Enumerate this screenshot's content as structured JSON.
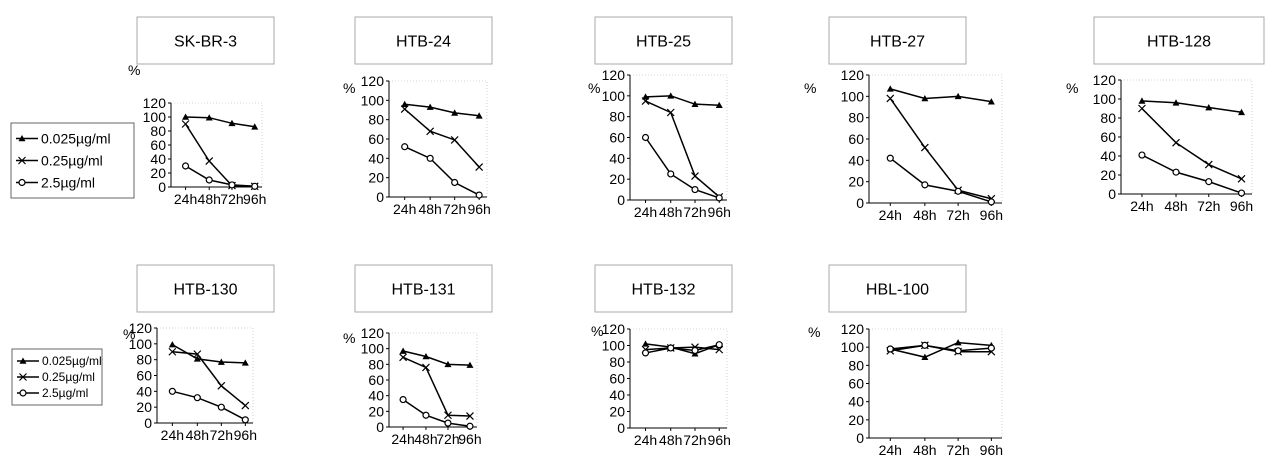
{
  "chart_data": [
    {
      "type": "line",
      "title": "SK-BR-3",
      "ylabel": "%",
      "categories": [
        "24h",
        "48h",
        "72h",
        "96h"
      ],
      "ylim": [
        0,
        120
      ],
      "yticks": [
        0,
        20,
        40,
        60,
        80,
        100,
        120
      ],
      "series": [
        {
          "name": "0.025µg/ml",
          "values": [
            100,
            99,
            91,
            86
          ]
        },
        {
          "name": "0.25µg/ml",
          "values": [
            90,
            37,
            2,
            1
          ]
        },
        {
          "name": "2.5µg/ml",
          "values": [
            30,
            10,
            3,
            1
          ]
        }
      ]
    },
    {
      "type": "line",
      "title": "HTB-24",
      "ylabel": "%",
      "categories": [
        "24h",
        "48h",
        "72h",
        "96h"
      ],
      "ylim": [
        0,
        120
      ],
      "yticks": [
        0,
        20,
        40,
        60,
        80,
        100,
        120
      ],
      "series": [
        {
          "name": "0.025µg/ml",
          "values": [
            96,
            93,
            87,
            84
          ]
        },
        {
          "name": "0.25µg/ml",
          "values": [
            91,
            68,
            59,
            31
          ]
        },
        {
          "name": "2.5µg/ml",
          "values": [
            52,
            40,
            15,
            2
          ]
        }
      ]
    },
    {
      "type": "line",
      "title": "HTB-25",
      "ylabel": "%",
      "categories": [
        "24h",
        "48h",
        "72h",
        "96h"
      ],
      "ylim": [
        0,
        120
      ],
      "yticks": [
        0,
        20,
        40,
        60,
        80,
        100,
        120
      ],
      "series": [
        {
          "name": "0.025µg/ml",
          "values": [
            99,
            100,
            92,
            91
          ]
        },
        {
          "name": "0.25µg/ml",
          "values": [
            95,
            84,
            23,
            3
          ]
        },
        {
          "name": "2.5µg/ml",
          "values": [
            60,
            25,
            10,
            2
          ]
        }
      ]
    },
    {
      "type": "line",
      "title": "HTB-27",
      "ylabel": "%",
      "categories": [
        "24h",
        "48h",
        "72h",
        "96h"
      ],
      "ylim": [
        0,
        120
      ],
      "yticks": [
        0,
        20,
        40,
        60,
        80,
        100,
        120
      ],
      "series": [
        {
          "name": "0.025µg/ml",
          "values": [
            107,
            98,
            100,
            95
          ]
        },
        {
          "name": "0.25µg/ml",
          "values": [
            98,
            52,
            12,
            4
          ]
        },
        {
          "name": "2.5µg/ml",
          "values": [
            42,
            17,
            11,
            1
          ]
        }
      ]
    },
    {
      "type": "line",
      "title": "HTB-128",
      "ylabel": "%",
      "categories": [
        "24h",
        "48h",
        "72h",
        "96h"
      ],
      "ylim": [
        0,
        120
      ],
      "yticks": [
        0,
        20,
        40,
        60,
        80,
        100,
        120
      ],
      "series": [
        {
          "name": "0.025µg/ml",
          "values": [
            98,
            96,
            91,
            86
          ]
        },
        {
          "name": "0.25µg/ml",
          "values": [
            90,
            54,
            31,
            16
          ]
        },
        {
          "name": "2.5µg/ml",
          "values": [
            41,
            23,
            13,
            1
          ]
        }
      ]
    },
    {
      "type": "line",
      "title": "HTB-130",
      "ylabel": "%",
      "categories": [
        "24h",
        "48h",
        "72h",
        "96h"
      ],
      "ylim": [
        0,
        120
      ],
      "yticks": [
        0,
        20,
        40,
        60,
        80,
        100,
        120
      ],
      "series": [
        {
          "name": "0.025µg/ml",
          "values": [
            99,
            81,
            77,
            76
          ]
        },
        {
          "name": "0.25µg/ml",
          "values": [
            90,
            87,
            47,
            22
          ]
        },
        {
          "name": "2.5µg/ml",
          "values": [
            40,
            32,
            20,
            4
          ]
        }
      ]
    },
    {
      "type": "line",
      "title": "HTB-131",
      "ylabel": "%",
      "categories": [
        "24h",
        "48h",
        "72h",
        "96h"
      ],
      "ylim": [
        0,
        120
      ],
      "yticks": [
        0,
        20,
        40,
        60,
        80,
        100,
        120
      ],
      "series": [
        {
          "name": "0.025µg/ml",
          "values": [
            97,
            90,
            80,
            79
          ]
        },
        {
          "name": "0.25µg/ml",
          "values": [
            89,
            76,
            15,
            14
          ]
        },
        {
          "name": "2.5µg/ml",
          "values": [
            35,
            15,
            5,
            1
          ]
        }
      ]
    },
    {
      "type": "line",
      "title": "HTB-132",
      "ylabel": "%",
      "categories": [
        "24h",
        "48h",
        "72h",
        "96h"
      ],
      "ylim": [
        0,
        120
      ],
      "yticks": [
        0,
        20,
        40,
        60,
        80,
        100,
        120
      ],
      "series": [
        {
          "name": "0.025µg/ml",
          "values": [
            102,
            98,
            90,
            101
          ]
        },
        {
          "name": "0.25µg/ml",
          "values": [
            95,
            97,
            98,
            95
          ]
        },
        {
          "name": "2.5µg/ml",
          "values": [
            91,
            97,
            94,
            101
          ]
        }
      ]
    },
    {
      "type": "line",
      "title": "HBL-100",
      "ylabel": "%",
      "categories": [
        "24h",
        "48h",
        "72h",
        "96h"
      ],
      "ylim": [
        0,
        120
      ],
      "yticks": [
        0,
        20,
        40,
        60,
        80,
        100,
        120
      ],
      "series": [
        {
          "name": "0.025µg/ml",
          "values": [
            98,
            89,
            105,
            102
          ]
        },
        {
          "name": "0.25µg/ml",
          "values": [
            96,
            102,
            95,
            95
          ]
        },
        {
          "name": "2.5µg/ml",
          "values": [
            98,
            102,
            96,
            99
          ]
        }
      ]
    }
  ],
  "legend": {
    "entries": [
      {
        "label": "0.025µg/ml",
        "marker": "filled-triangle"
      },
      {
        "label": "0.25µg/ml",
        "marker": "x-cross"
      },
      {
        "label": "2.5µg/ml",
        "marker": "open-circle"
      }
    ]
  },
  "colors": {
    "line": "#000000",
    "frame": "#aaaaaa",
    "background": "#ffffff"
  }
}
